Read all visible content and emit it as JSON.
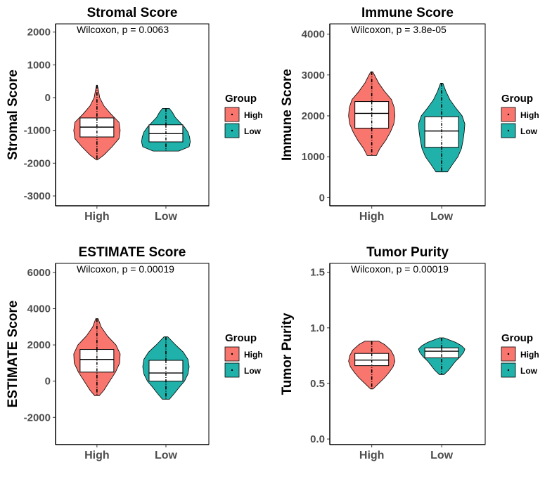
{
  "colors": {
    "high": "#F8766D",
    "low": "#20B2AA"
  },
  "chart_data": [
    {
      "type": "violin",
      "title": "Stromal Score",
      "ylabel": "Stromal Score",
      "annotation": "Wilcoxon, p = 0.0063",
      "categories": [
        "High",
        "Low"
      ],
      "yticks": [
        -3000,
        -2000,
        -1000,
        0,
        1000,
        2000
      ],
      "ylim": [
        -3300,
        2250
      ],
      "legend": {
        "title": "Group",
        "items": [
          "High",
          "Low"
        ],
        "position": "right"
      },
      "series": [
        {
          "name": "High",
          "min": -1900,
          "max": 380,
          "q1": -1200,
          "median": -900,
          "q3": -620,
          "density": [
            [
              -1900,
              0.02
            ],
            [
              -1750,
              0.3
            ],
            [
              -1500,
              0.65
            ],
            [
              -1250,
              0.95
            ],
            [
              -1000,
              1.0
            ],
            [
              -750,
              0.95
            ],
            [
              -500,
              0.6
            ],
            [
              -250,
              0.3
            ],
            [
              0,
              0.12
            ],
            [
              200,
              0.07
            ],
            [
              380,
              0.02
            ]
          ]
        },
        {
          "name": "Low",
          "min": -1630,
          "max": -330,
          "q1": -1350,
          "median": -1100,
          "q3": -830,
          "density": [
            [
              -1630,
              0.55
            ],
            [
              -1500,
              1.0
            ],
            [
              -1350,
              1.05
            ],
            [
              -1200,
              1.02
            ],
            [
              -1050,
              0.95
            ],
            [
              -900,
              0.8
            ],
            [
              -750,
              0.6
            ],
            [
              -600,
              0.4
            ],
            [
              -450,
              0.28
            ],
            [
              -330,
              0.15
            ]
          ]
        }
      ]
    },
    {
      "type": "violin",
      "title": "Immune Score",
      "ylabel": "Immune Score",
      "annotation": "Wilcoxon, p = 3.8e-05",
      "categories": [
        "High",
        "Low"
      ],
      "yticks": [
        0,
        1000,
        2000,
        3000,
        4000
      ],
      "ylim": [
        -200,
        4250
      ],
      "legend": {
        "title": "Group",
        "items": [
          "High",
          "Low"
        ],
        "position": "right"
      },
      "series": [
        {
          "name": "High",
          "min": 1030,
          "max": 3080,
          "q1": 1700,
          "median": 2060,
          "q3": 2350,
          "density": [
            [
              1030,
              0.2
            ],
            [
              1200,
              0.35
            ],
            [
              1400,
              0.6
            ],
            [
              1600,
              0.8
            ],
            [
              1800,
              0.95
            ],
            [
              2000,
              1.0
            ],
            [
              2200,
              0.97
            ],
            [
              2400,
              0.85
            ],
            [
              2600,
              0.55
            ],
            [
              2800,
              0.3
            ],
            [
              3000,
              0.12
            ],
            [
              3080,
              0.04
            ]
          ]
        },
        {
          "name": "Low",
          "min": 630,
          "max": 2800,
          "q1": 1230,
          "median": 1630,
          "q3": 1980,
          "density": [
            [
              630,
              0.25
            ],
            [
              800,
              0.45
            ],
            [
              1000,
              0.7
            ],
            [
              1200,
              0.85
            ],
            [
              1400,
              0.92
            ],
            [
              1600,
              0.97
            ],
            [
              1800,
              1.0
            ],
            [
              2000,
              0.88
            ],
            [
              2200,
              0.6
            ],
            [
              2400,
              0.35
            ],
            [
              2600,
              0.18
            ],
            [
              2800,
              0.05
            ]
          ]
        }
      ]
    },
    {
      "type": "violin",
      "title": "ESTIMATE Score",
      "ylabel": "ESTIMATE Score",
      "annotation": "Wilcoxon, p = 0.00019",
      "categories": [
        "High",
        "Low"
      ],
      "yticks": [
        -2000,
        0,
        2000,
        4000,
        6000
      ],
      "ylim": [
        -3500,
        6500
      ],
      "legend": {
        "title": "Group",
        "items": [
          "High",
          "Low"
        ],
        "position": "right"
      },
      "series": [
        {
          "name": "High",
          "min": -800,
          "max": 3450,
          "q1": 500,
          "median": 1200,
          "q3": 1750,
          "density": [
            [
              -800,
              0.1
            ],
            [
              -500,
              0.3
            ],
            [
              0,
              0.55
            ],
            [
              500,
              0.8
            ],
            [
              1000,
              0.98
            ],
            [
              1500,
              1.0
            ],
            [
              2000,
              0.82
            ],
            [
              2500,
              0.45
            ],
            [
              3000,
              0.18
            ],
            [
              3450,
              0.05
            ]
          ]
        },
        {
          "name": "Low",
          "min": -1000,
          "max": 2450,
          "q1": 0,
          "median": 450,
          "q3": 1150,
          "density": [
            [
              -1000,
              0.15
            ],
            [
              -700,
              0.35
            ],
            [
              -300,
              0.6
            ],
            [
              0,
              0.8
            ],
            [
              400,
              0.95
            ],
            [
              800,
              1.0
            ],
            [
              1200,
              0.95
            ],
            [
              1600,
              0.75
            ],
            [
              2000,
              0.42
            ],
            [
              2450,
              0.08
            ]
          ]
        }
      ]
    },
    {
      "type": "violin",
      "title": "Tumor Purity",
      "ylabel": "Tumor Purity",
      "annotation": "Wilcoxon, p = 0.00019",
      "categories": [
        "High",
        "Low"
      ],
      "yticks": [
        0.0,
        0.5,
        1.0,
        1.5
      ],
      "ytick_labels": [
        "0.0",
        "0.5",
        "1.0",
        "1.5"
      ],
      "ylim": [
        -0.05,
        1.58
      ],
      "legend": {
        "title": "Group",
        "items": [
          "High",
          "Low"
        ],
        "position": "right"
      },
      "series": [
        {
          "name": "High",
          "min": 0.45,
          "max": 0.88,
          "q1": 0.66,
          "median": 0.71,
          "q3": 0.77,
          "density": [
            [
              0.45,
              0.05
            ],
            [
              0.5,
              0.3
            ],
            [
              0.55,
              0.55
            ],
            [
              0.6,
              0.75
            ],
            [
              0.65,
              0.92
            ],
            [
              0.7,
              1.0
            ],
            [
              0.75,
              0.95
            ],
            [
              0.8,
              0.82
            ],
            [
              0.85,
              0.55
            ],
            [
              0.88,
              0.3
            ]
          ]
        },
        {
          "name": "Low",
          "min": 0.58,
          "max": 0.91,
          "q1": 0.73,
          "median": 0.79,
          "q3": 0.82,
          "density": [
            [
              0.58,
              0.1
            ],
            [
              0.62,
              0.3
            ],
            [
              0.66,
              0.45
            ],
            [
              0.7,
              0.6
            ],
            [
              0.74,
              0.8
            ],
            [
              0.78,
              0.95
            ],
            [
              0.81,
              1.0
            ],
            [
              0.84,
              0.85
            ],
            [
              0.87,
              0.6
            ],
            [
              0.91,
              0.1
            ]
          ]
        }
      ]
    }
  ]
}
